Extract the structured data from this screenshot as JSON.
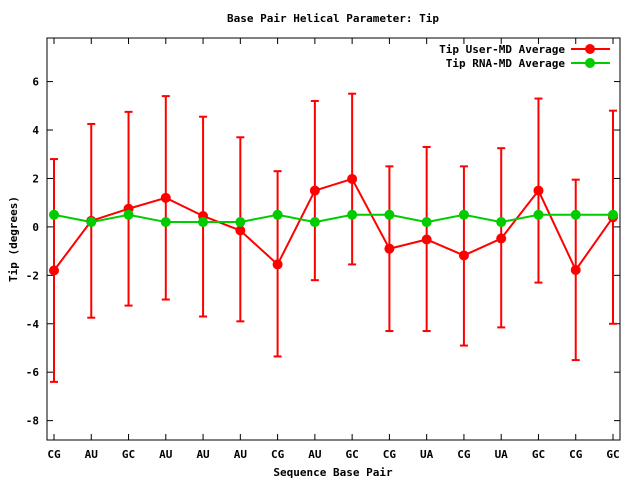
{
  "chart_data": {
    "type": "line",
    "title": "Base Pair Helical Parameter: Tip",
    "xlabel": "Sequence Base Pair",
    "ylabel": "Tip (degrees)",
    "ylim": [
      -8.8,
      7.8
    ],
    "yticks": [
      -8,
      -6,
      -4,
      -2,
      0,
      2,
      4,
      6
    ],
    "categories": [
      "CG",
      "AU",
      "GC",
      "AU",
      "AU",
      "AU",
      "CG",
      "AU",
      "GC",
      "CG",
      "UA",
      "CG",
      "UA",
      "GC",
      "CG",
      "GC"
    ],
    "grid": false,
    "legend_position": "top-right",
    "series": [
      {
        "name": "Tip User-MD Average",
        "color": "#ff0000",
        "values": [
          -1.8,
          0.25,
          0.75,
          1.2,
          0.45,
          -0.15,
          -1.55,
          1.5,
          1.98,
          -0.9,
          -0.52,
          -1.18,
          -0.48,
          1.5,
          -1.78,
          0.4
        ],
        "err_low": [
          -6.4,
          -3.75,
          -3.25,
          -3.0,
          -3.7,
          -3.9,
          -5.35,
          -2.2,
          -1.55,
          -4.3,
          -4.3,
          -4.9,
          -4.15,
          -2.3,
          -5.5,
          -4.0
        ],
        "err_high": [
          2.8,
          4.25,
          4.75,
          5.4,
          4.55,
          3.7,
          2.3,
          5.2,
          5.5,
          2.5,
          3.3,
          2.5,
          3.25,
          5.3,
          1.95,
          4.8
        ]
      },
      {
        "name": "Tip RNA-MD Average",
        "color": "#00cc00",
        "values": [
          0.5,
          0.2,
          0.5,
          0.2,
          0.2,
          0.2,
          0.5,
          0.2,
          0.5,
          0.5,
          0.2,
          0.5,
          0.2,
          0.5,
          0.5,
          0.5
        ]
      }
    ]
  }
}
